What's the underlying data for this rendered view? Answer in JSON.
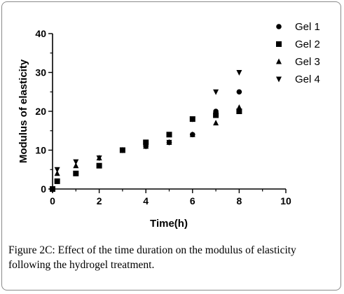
{
  "caption": "Figure 2C: Effect of the time duration on the modulus of elasticity following the hydrogel treatment.",
  "chart_data": {
    "type": "scatter",
    "title": "",
    "xlabel": "Time(h)",
    "ylabel": "Modulus of elasticity",
    "xlim": [
      0,
      10
    ],
    "ylim": [
      0,
      40
    ],
    "xticks": [
      "0",
      "2",
      "4",
      "6",
      "8",
      "10"
    ],
    "yticks": [
      "0",
      "10",
      "20",
      "30",
      "40"
    ],
    "grid": false,
    "legend_position": "top-right",
    "series": [
      {
        "name": "Gel 1",
        "marker": "circle",
        "x": [
          0,
          0.2,
          1,
          2,
          3,
          4,
          5,
          6,
          7,
          8
        ],
        "y": [
          0,
          2,
          4,
          6,
          10,
          11,
          12,
          14,
          20,
          25
        ]
      },
      {
        "name": "Gel 2",
        "marker": "square",
        "x": [
          0,
          0.2,
          1,
          2,
          3,
          4,
          5,
          6,
          7,
          8
        ],
        "y": [
          0,
          2,
          4,
          6,
          10,
          12,
          14,
          18,
          19,
          20
        ]
      },
      {
        "name": "Gel 3",
        "marker": "triangle-up",
        "x": [
          0,
          0.2,
          1,
          2,
          3,
          4,
          5,
          6,
          7,
          8
        ],
        "y": [
          0,
          4,
          6,
          8,
          10,
          11,
          12,
          14,
          17,
          21
        ]
      },
      {
        "name": "Gel 4",
        "marker": "triangle-down",
        "x": [
          0,
          0.2,
          1,
          2,
          3,
          4,
          5,
          6,
          7,
          8
        ],
        "y": [
          0,
          5,
          7,
          8,
          10,
          11,
          12,
          18,
          25,
          30
        ]
      }
    ]
  }
}
